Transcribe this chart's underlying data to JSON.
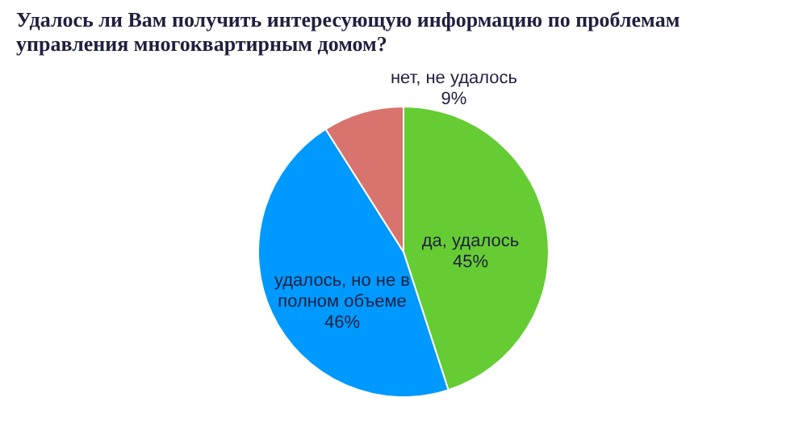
{
  "chart_data": {
    "type": "pie",
    "title": "Удалось ли Вам получить интересующую информацию по проблемам управления многоквартирным домом?",
    "categories": [
      "да, удалось",
      "удалось, но не в полном объеме",
      "нет, не удалось"
    ],
    "values": [
      45,
      46,
      9
    ],
    "colors": [
      "#66cc33",
      "#0099ff",
      "#d9736e"
    ],
    "value_labels": [
      "45%",
      "46%",
      "9%"
    ],
    "legend": false
  }
}
